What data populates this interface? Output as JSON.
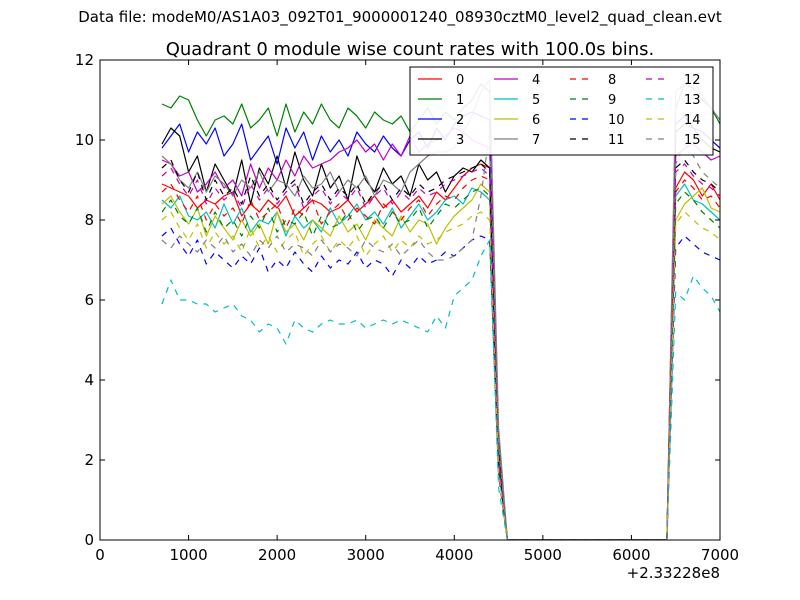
{
  "figure": {
    "suptitle": "Data file: modeM0/AS1A03_092T01_9000001240_08930cztM0_level2_quad_clean.evt"
  },
  "chart_data": {
    "type": "line",
    "title": "Quadrant 0 module wise count rates with 100.0s bins.",
    "xlabel": "",
    "ylabel": "",
    "xlim": [
      0,
      7000
    ],
    "ylim": [
      0,
      12
    ],
    "x_offset_label": "+2.33228e8",
    "xticks": [
      0,
      1000,
      2000,
      3000,
      4000,
      5000,
      6000,
      7000
    ],
    "xtick_labels": [
      "0",
      "1000",
      "2000",
      "3000",
      "4000",
      "5000",
      "6000",
      "7000"
    ],
    "yticks": [
      0,
      2,
      4,
      6,
      8,
      10,
      12
    ],
    "ytick_labels": [
      "0",
      "2",
      "4",
      "6",
      "8",
      "10",
      "12"
    ],
    "legend_position": "top-right",
    "legend_columns": 4,
    "x": [
      700,
      800,
      900,
      1000,
      1100,
      1200,
      1300,
      1400,
      1500,
      1600,
      1700,
      1800,
      1900,
      2000,
      2100,
      2200,
      2300,
      2400,
      2500,
      2600,
      2700,
      2800,
      2900,
      3000,
      3100,
      3200,
      3300,
      3400,
      3500,
      3600,
      3700,
      3800,
      3900,
      4000,
      4100,
      4200,
      4300,
      4400,
      4500,
      4600,
      4700,
      4800,
      4900,
      5000,
      5100,
      5200,
      5300,
      5400,
      5500,
      5600,
      5700,
      5800,
      5900,
      6000,
      6100,
      6200,
      6300,
      6400,
      6500,
      6600,
      6700,
      6800,
      6900,
      7000
    ],
    "series": [
      {
        "name": "0",
        "color": "#ff0000",
        "dash": "solid",
        "values": [
          8.9,
          8.8,
          8.7,
          8.6,
          8.3,
          8.5,
          8.4,
          8.6,
          8.7,
          8.1,
          8.4,
          8.2,
          8.5,
          8.3,
          8.6,
          8.1,
          8.3,
          8.5,
          8.4,
          8.2,
          8.3,
          8.5,
          8.2,
          8.4,
          8.6,
          8.3,
          8.5,
          8.2,
          8.4,
          8.6,
          8.3,
          8.7,
          8.5,
          8.8,
          9.1,
          9.3,
          9.4,
          9.3,
          2.0,
          0.0,
          0.0,
          0.0,
          0.0,
          0.0,
          0.0,
          0.0,
          0.0,
          0.0,
          0.0,
          0.0,
          0.0,
          0.0,
          0.0,
          0.0,
          0.0,
          0.0,
          0.0,
          0.0,
          8.8,
          9.2,
          9.0,
          8.6,
          8.9,
          8.5
        ]
      },
      {
        "name": "1",
        "color": "#008000",
        "dash": "solid",
        "values": [
          10.9,
          10.8,
          11.1,
          11.0,
          10.5,
          10.1,
          10.5,
          10.6,
          10.4,
          10.9,
          10.3,
          10.5,
          10.8,
          10.1,
          10.9,
          10.2,
          10.7,
          10.4,
          10.9,
          10.5,
          10.3,
          10.8,
          10.6,
          10.3,
          10.7,
          10.5,
          10.4,
          10.6,
          10.2,
          10.5,
          10.8,
          10.4,
          10.7,
          10.5,
          10.8,
          11.0,
          11.4,
          11.2,
          2.5,
          0.0,
          0.0,
          0.0,
          0.0,
          0.0,
          0.0,
          0.0,
          0.0,
          0.0,
          0.0,
          0.0,
          0.0,
          0.0,
          0.0,
          0.0,
          0.0,
          0.0,
          0.0,
          0.0,
          10.8,
          11.4,
          11.3,
          11.0,
          10.8,
          10.4
        ]
      },
      {
        "name": "2",
        "color": "#0000ff",
        "dash": "solid",
        "values": [
          9.8,
          10.1,
          10.4,
          9.7,
          10.2,
          9.9,
          10.3,
          9.6,
          9.9,
          10.4,
          9.5,
          9.8,
          10.1,
          9.4,
          10.3,
          9.8,
          10.2,
          9.5,
          10.1,
          9.7,
          10.0,
          9.6,
          10.2,
          9.9,
          9.7,
          10.1,
          9.8,
          9.6,
          10.0,
          10.2,
          9.8,
          10.3,
          10.0,
          10.4,
          10.6,
          10.7,
          10.6,
          10.5,
          2.0,
          0.0,
          0.0,
          0.0,
          0.0,
          0.0,
          0.0,
          0.0,
          0.0,
          0.0,
          0.0,
          0.0,
          0.0,
          0.0,
          0.0,
          0.0,
          0.0,
          0.0,
          0.0,
          0.0,
          10.4,
          10.6,
          10.3,
          10.2,
          10.0,
          9.8
        ]
      },
      {
        "name": "3",
        "color": "#000000",
        "dash": "solid",
        "values": [
          9.9,
          10.3,
          10.1,
          9.2,
          9.6,
          8.7,
          9.4,
          9.0,
          8.6,
          9.5,
          8.4,
          9.3,
          8.9,
          9.6,
          8.8,
          9.7,
          9.0,
          8.6,
          9.4,
          8.8,
          9.1,
          8.5,
          9.6,
          9.0,
          8.7,
          9.3,
          8.9,
          9.1,
          8.6,
          9.4,
          9.0,
          9.2,
          8.7,
          9.1,
          9.3,
          9.2,
          9.5,
          9.3,
          2.2,
          0.0,
          0.0,
          0.0,
          0.0,
          0.0,
          0.0,
          0.0,
          0.0,
          0.0,
          0.0,
          0.0,
          0.0,
          0.0,
          0.0,
          0.0,
          0.0,
          0.0,
          0.0,
          0.0,
          10.2,
          10.4,
          10.3,
          10.0,
          9.8,
          9.7
        ]
      },
      {
        "name": "4",
        "color": "#c000c0",
        "dash": "solid",
        "values": [
          9.5,
          9.4,
          9.1,
          9.2,
          8.7,
          8.9,
          9.2,
          8.8,
          9.0,
          8.6,
          9.4,
          8.8,
          9.3,
          9.0,
          9.5,
          9.1,
          9.6,
          9.3,
          9.4,
          9.5,
          9.7,
          9.8,
          10.0,
          9.7,
          9.9,
          9.5,
          9.9,
          9.6,
          10.1,
          9.7,
          9.9,
          10.0,
          10.1,
          10.3,
          10.2,
          10.0,
          9.9,
          9.8,
          2.1,
          0.0,
          0.0,
          0.0,
          0.0,
          0.0,
          0.0,
          0.0,
          0.0,
          0.0,
          0.0,
          0.0,
          0.0,
          0.0,
          0.0,
          0.0,
          0.0,
          0.0,
          0.0,
          0.0,
          9.6,
          9.8,
          9.9,
          9.7,
          9.5,
          9.6
        ]
      },
      {
        "name": "5",
        "color": "#00bfbf",
        "dash": "solid",
        "values": [
          8.5,
          8.3,
          8.6,
          8.1,
          8.0,
          8.2,
          7.8,
          8.4,
          7.9,
          8.3,
          7.7,
          8.0,
          7.9,
          8.2,
          7.6,
          8.1,
          7.8,
          8.0,
          7.7,
          8.3,
          7.9,
          8.1,
          8.4,
          8.0,
          8.2,
          7.9,
          8.3,
          7.8,
          8.1,
          8.4,
          8.0,
          8.2,
          8.5,
          8.6,
          8.4,
          8.8,
          8.7,
          8.5,
          1.8,
          0.0,
          0.0,
          0.0,
          0.0,
          0.0,
          0.0,
          0.0,
          0.0,
          0.0,
          0.0,
          0.0,
          0.0,
          0.0,
          0.0,
          0.0,
          0.0,
          0.0,
          0.0,
          0.0,
          8.6,
          8.9,
          8.5,
          8.4,
          8.2,
          8.0
        ]
      },
      {
        "name": "6",
        "color": "#bfbf00",
        "dash": "solid",
        "values": [
          8.4,
          8.6,
          8.2,
          7.9,
          8.3,
          7.6,
          8.1,
          7.8,
          7.5,
          8.0,
          7.6,
          7.9,
          7.4,
          8.2,
          7.7,
          7.9,
          7.5,
          8.0,
          7.8,
          7.6,
          8.1,
          7.7,
          7.9,
          7.5,
          8.0,
          7.8,
          7.6,
          8.1,
          7.7,
          8.0,
          7.9,
          7.4,
          7.8,
          8.1,
          8.3,
          8.5,
          8.9,
          8.7,
          1.9,
          0.0,
          0.0,
          0.0,
          0.0,
          0.0,
          0.0,
          0.0,
          0.0,
          0.0,
          0.0,
          0.0,
          0.0,
          0.0,
          0.0,
          0.0,
          0.0,
          0.0,
          0.0,
          0.0,
          8.0,
          8.4,
          8.6,
          8.8,
          8.3,
          8.2
        ]
      },
      {
        "name": "7",
        "color": "#808080",
        "dash": "solid",
        "values": [
          9.6,
          9.4,
          9.0,
          8.8,
          9.2,
          8.7,
          9.1,
          8.9,
          8.6,
          9.0,
          8.8,
          9.2,
          8.7,
          9.0,
          8.9,
          8.6,
          9.1,
          8.8,
          8.9,
          9.2,
          8.7,
          9.0,
          8.8,
          9.1,
          8.6,
          9.0,
          8.9,
          8.7,
          9.2,
          9.4,
          9.6,
          9.7,
          9.7,
          9.8,
          10.2,
          10.6,
          11.2,
          11.5,
          2.8,
          0.0,
          0.0,
          0.0,
          0.0,
          0.0,
          0.0,
          0.0,
          0.0,
          0.0,
          0.0,
          0.0,
          0.0,
          0.0,
          0.0,
          0.0,
          0.0,
          0.0,
          0.0,
          0.0,
          11.2,
          11.4,
          11.5,
          11.1,
          10.8,
          10.5
        ]
      },
      {
        "name": "8",
        "color": "#ff0000",
        "dash": "dashed",
        "values": [
          8.7,
          8.9,
          8.5,
          8.2,
          8.6,
          8.0,
          8.4,
          8.1,
          8.3,
          7.9,
          8.5,
          8.0,
          8.2,
          8.4,
          7.8,
          8.3,
          8.1,
          8.5,
          7.9,
          8.2,
          8.4,
          8.0,
          8.3,
          8.1,
          7.9,
          8.4,
          8.2,
          8.0,
          8.3,
          8.5,
          8.1,
          8.4,
          8.6,
          8.5,
          8.8,
          9.0,
          9.1,
          9.0,
          1.9,
          0.0,
          0.0,
          0.0,
          0.0,
          0.0,
          0.0,
          0.0,
          0.0,
          0.0,
          0.0,
          0.0,
          0.0,
          0.0,
          0.0,
          0.0,
          0.0,
          0.0,
          0.0,
          0.0,
          8.7,
          9.0,
          8.8,
          8.5,
          8.6,
          8.3
        ]
      },
      {
        "name": "9",
        "color": "#008000",
        "dash": "dashed",
        "values": [
          8.2,
          8.5,
          8.1,
          7.9,
          8.3,
          7.7,
          8.2,
          7.8,
          8.0,
          7.6,
          8.1,
          7.8,
          8.3,
          7.7,
          8.0,
          7.9,
          8.2,
          7.6,
          8.1,
          7.8,
          7.9,
          8.2,
          7.7,
          8.0,
          8.1,
          7.8,
          8.2,
          7.9,
          8.0,
          8.3,
          7.8,
          8.1,
          8.4,
          8.3,
          8.5,
          8.7,
          8.8,
          8.6,
          1.8,
          0.0,
          0.0,
          0.0,
          0.0,
          0.0,
          0.0,
          0.0,
          0.0,
          0.0,
          0.0,
          0.0,
          0.0,
          0.0,
          0.0,
          0.0,
          0.0,
          0.0,
          0.0,
          0.0,
          8.4,
          8.7,
          8.5,
          8.2,
          8.0,
          7.8
        ]
      },
      {
        "name": "10",
        "color": "#0000ff",
        "dash": "dashed",
        "values": [
          7.6,
          7.8,
          7.4,
          7.1,
          7.5,
          6.9,
          7.2,
          7.0,
          6.8,
          7.1,
          6.9,
          7.3,
          6.7,
          7.0,
          6.8,
          7.2,
          6.9,
          6.7,
          7.1,
          6.8,
          7.0,
          6.9,
          7.2,
          6.8,
          7.0,
          6.9,
          6.6,
          7.0,
          6.8,
          7.1,
          6.9,
          7.0,
          7.2,
          7.1,
          7.3,
          7.5,
          7.6,
          7.5,
          1.6,
          0.0,
          0.0,
          0.0,
          0.0,
          0.0,
          0.0,
          0.0,
          0.0,
          0.0,
          0.0,
          0.0,
          0.0,
          0.0,
          0.0,
          0.0,
          0.0,
          0.0,
          0.0,
          0.0,
          7.3,
          7.6,
          7.4,
          7.2,
          7.1,
          7.0
        ]
      },
      {
        "name": "11",
        "color": "#000000",
        "dash": "dashed",
        "values": [
          9.3,
          9.5,
          9.0,
          8.7,
          9.2,
          8.5,
          9.0,
          8.6,
          8.8,
          8.4,
          9.1,
          8.6,
          8.9,
          8.5,
          8.8,
          9.0,
          8.4,
          8.7,
          8.9,
          8.5,
          8.8,
          8.6,
          8.9,
          8.4,
          8.7,
          8.9,
          8.5,
          8.8,
          8.6,
          8.9,
          8.7,
          8.8,
          9.0,
          9.1,
          9.2,
          9.3,
          9.4,
          9.2,
          2.0,
          0.0,
          0.0,
          0.0,
          0.0,
          0.0,
          0.0,
          0.0,
          0.0,
          0.0,
          0.0,
          0.0,
          0.0,
          0.0,
          0.0,
          0.0,
          0.0,
          0.0,
          0.0,
          0.0,
          9.3,
          9.5,
          9.2,
          9.0,
          8.9,
          8.7
        ]
      },
      {
        "name": "12",
        "color": "#c000c0",
        "dash": "dashed",
        "values": [
          9.1,
          9.3,
          8.9,
          8.6,
          9.0,
          8.4,
          8.8,
          8.5,
          8.7,
          8.3,
          8.9,
          8.5,
          8.8,
          8.4,
          8.7,
          8.9,
          8.3,
          8.6,
          8.8,
          8.4,
          8.7,
          8.5,
          8.8,
          8.3,
          8.6,
          8.8,
          8.4,
          8.7,
          8.5,
          8.8,
          8.6,
          8.7,
          8.9,
          9.0,
          9.1,
          9.2,
          9.3,
          9.1,
          2.0,
          0.0,
          0.0,
          0.0,
          0.0,
          0.0,
          0.0,
          0.0,
          0.0,
          0.0,
          0.0,
          0.0,
          0.0,
          0.0,
          0.0,
          0.0,
          0.0,
          0.0,
          0.0,
          0.0,
          9.2,
          9.4,
          9.1,
          8.9,
          8.8,
          8.6
        ]
      },
      {
        "name": "13",
        "color": "#00bfbf",
        "dash": "dashed",
        "values": [
          5.9,
          6.5,
          6.0,
          6.0,
          5.9,
          5.9,
          5.7,
          5.8,
          5.9,
          5.6,
          5.5,
          5.2,
          5.4,
          5.3,
          4.9,
          5.5,
          5.3,
          5.2,
          5.4,
          5.5,
          5.4,
          5.4,
          5.5,
          5.3,
          5.4,
          5.5,
          5.4,
          5.5,
          5.4,
          5.3,
          5.2,
          5.6,
          5.3,
          6.1,
          6.3,
          6.5,
          7.1,
          7.5,
          1.3,
          0.0,
          0.0,
          0.0,
          0.0,
          0.0,
          0.0,
          0.0,
          0.0,
          0.0,
          0.0,
          0.0,
          0.0,
          0.0,
          0.0,
          0.0,
          0.0,
          0.0,
          0.0,
          0.0,
          6.2,
          6.0,
          6.6,
          6.3,
          6.1,
          5.7
        ]
      },
      {
        "name": "14",
        "color": "#bfbf00",
        "dash": "dashed",
        "values": [
          8.0,
          8.2,
          7.8,
          7.5,
          7.9,
          7.3,
          7.7,
          7.4,
          7.6,
          7.2,
          7.8,
          7.3,
          7.6,
          7.2,
          7.5,
          7.7,
          7.1,
          7.4,
          7.6,
          7.2,
          7.5,
          7.3,
          7.6,
          7.1,
          7.4,
          7.6,
          7.2,
          7.5,
          7.3,
          7.6,
          7.4,
          7.5,
          7.7,
          7.8,
          7.9,
          8.1,
          8.2,
          8.0,
          1.7,
          0.0,
          0.0,
          0.0,
          0.0,
          0.0,
          0.0,
          0.0,
          0.0,
          0.0,
          0.0,
          0.0,
          0.0,
          0.0,
          0.0,
          0.0,
          0.0,
          0.0,
          0.0,
          0.0,
          7.9,
          8.2,
          8.0,
          7.8,
          7.7,
          7.5
        ]
      },
      {
        "name": "15",
        "color": "#808080",
        "dash": "dashed",
        "values": [
          7.5,
          7.3,
          7.6,
          7.4,
          7.2,
          7.5,
          7.3,
          7.6,
          7.2,
          7.4,
          7.1,
          7.5,
          7.3,
          7.6,
          7.2,
          7.4,
          7.3,
          7.1,
          7.5,
          7.2,
          7.4,
          7.3,
          7.1,
          7.5,
          7.3,
          7.2,
          7.4,
          7.1,
          7.3,
          7.5,
          7.2,
          7.0,
          7.0,
          7.1,
          7.3,
          7.5,
          8.6,
          10.2,
          2.3,
          0.0,
          0.0,
          0.0,
          0.0,
          0.0,
          0.0,
          0.0,
          0.0,
          0.0,
          0.0,
          0.0,
          0.0,
          0.0,
          0.0,
          0.0,
          0.0,
          0.0,
          0.0,
          0.0,
          9.4,
          9.9,
          9.6,
          9.2,
          9.0,
          8.8
        ]
      }
    ]
  }
}
